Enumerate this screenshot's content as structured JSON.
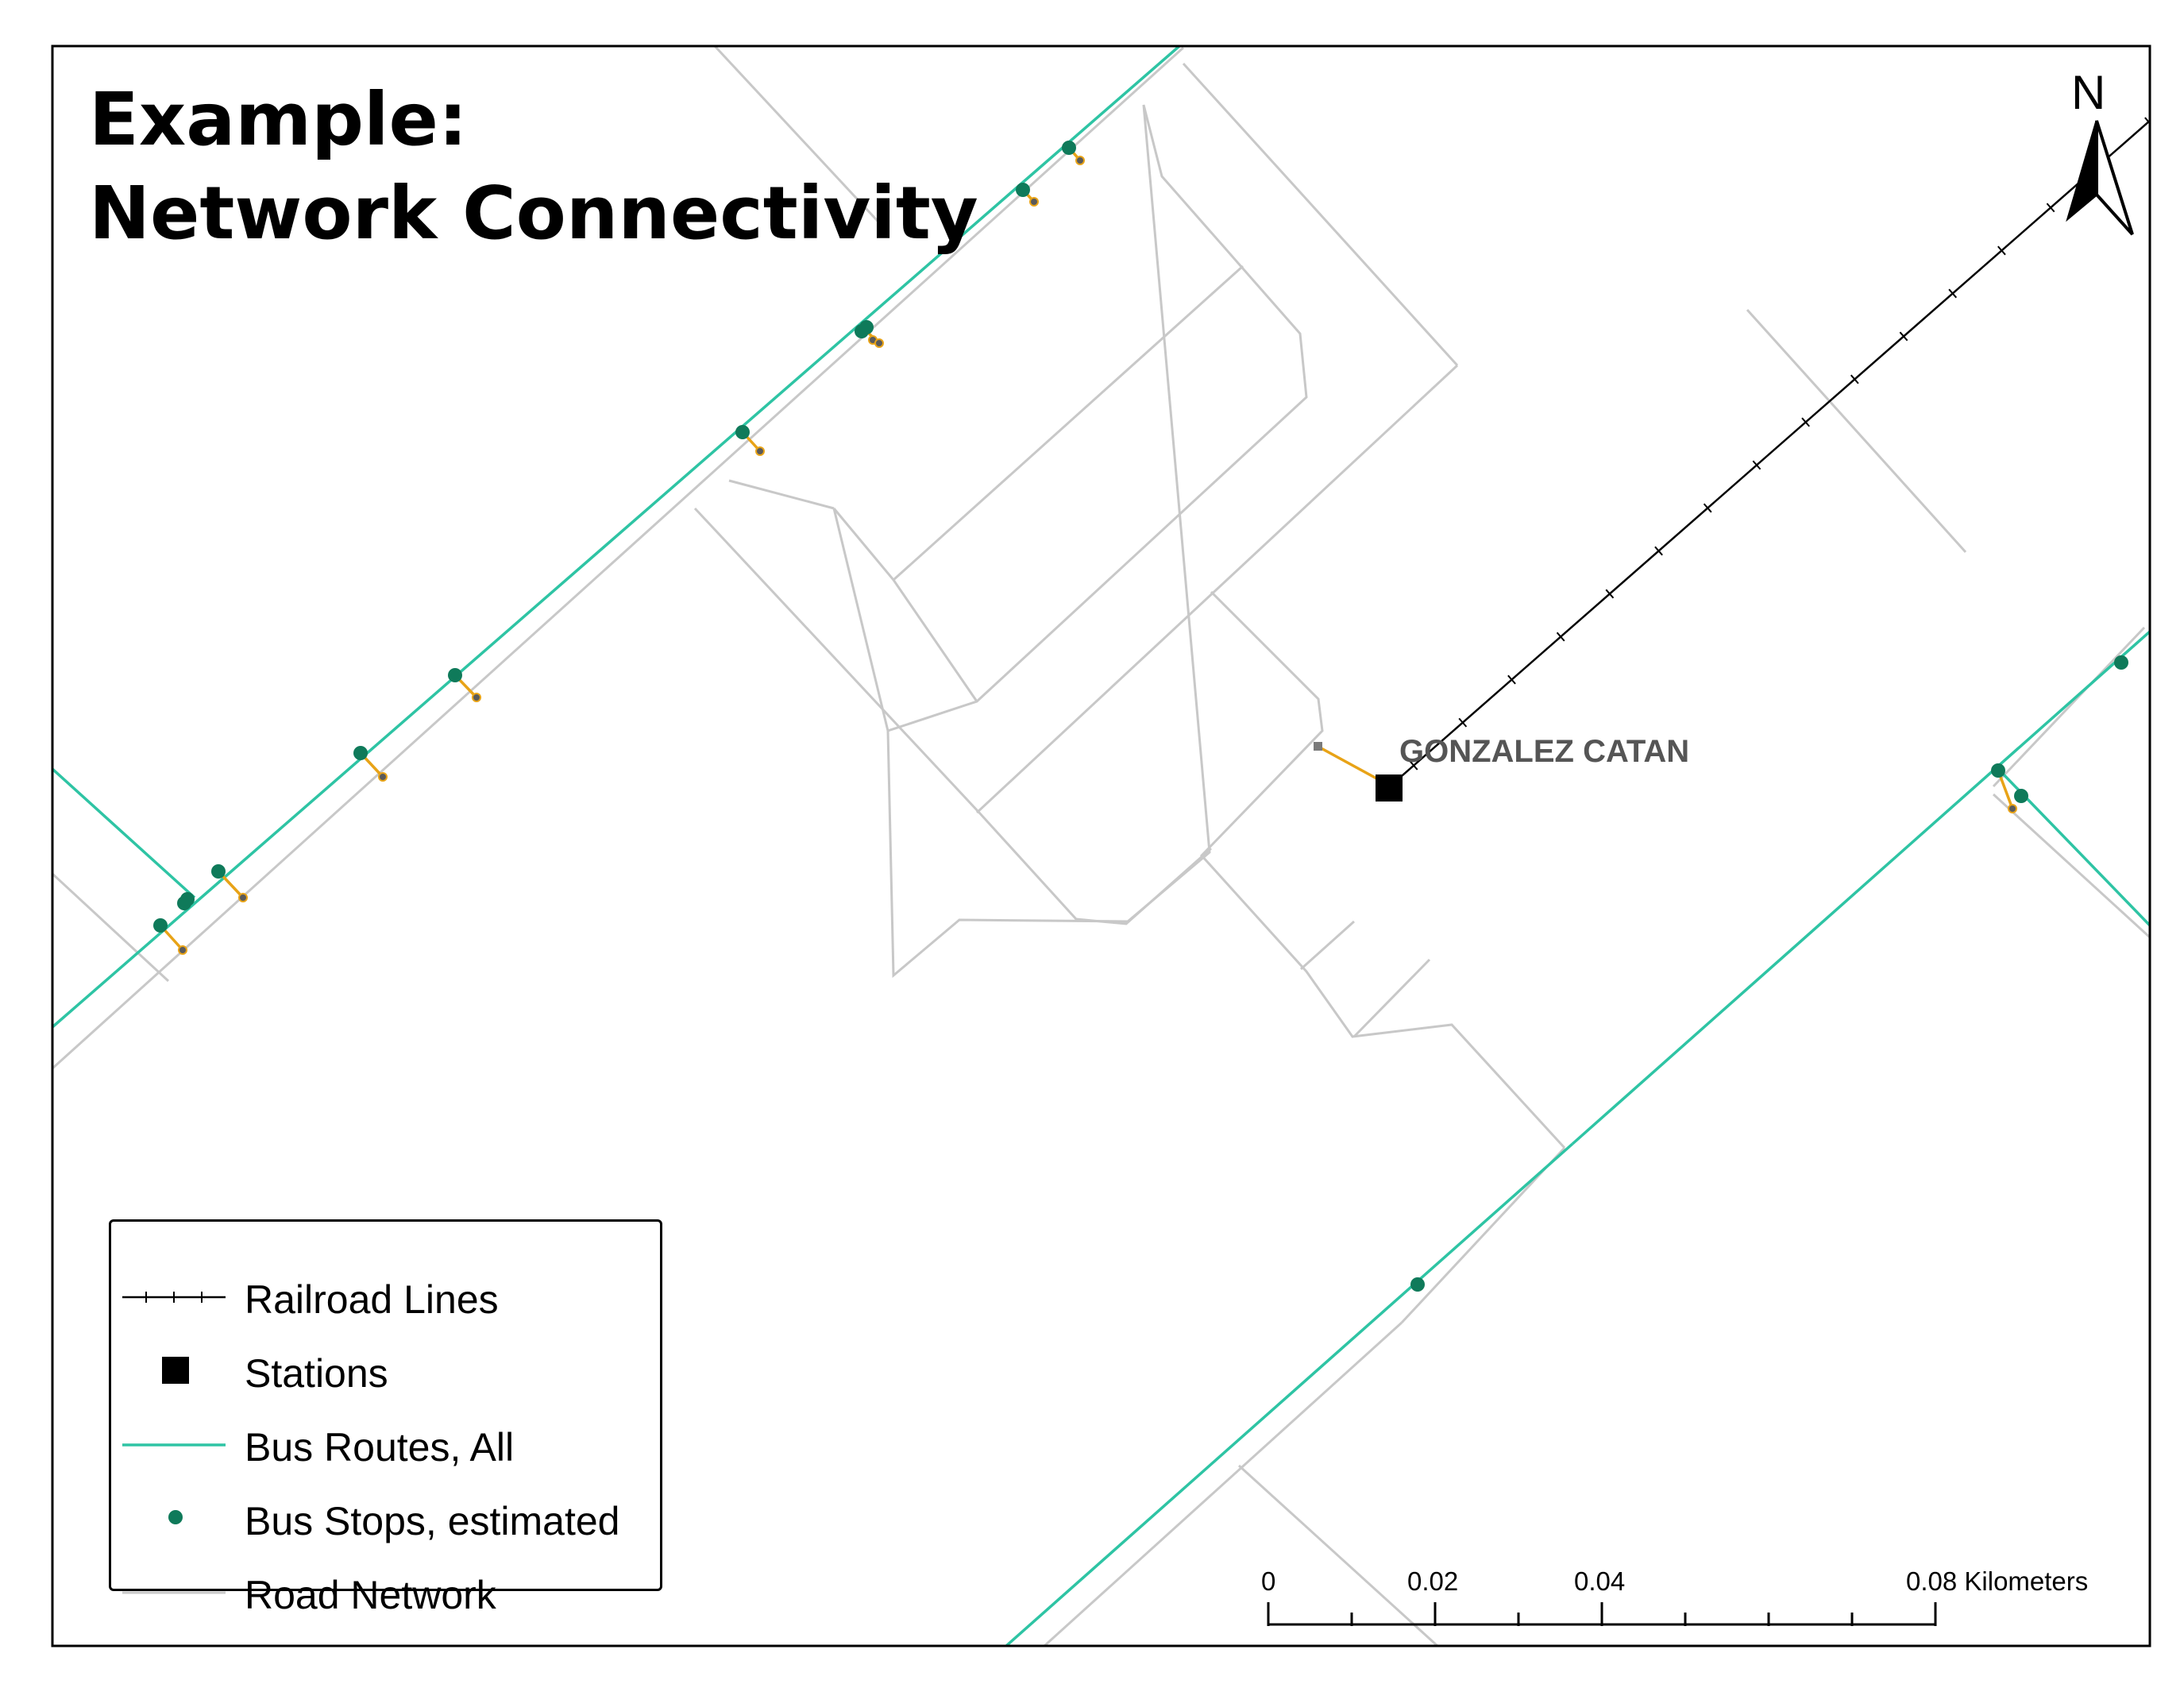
{
  "title": {
    "line1": "Example:",
    "line2": "Network Connectivity"
  },
  "north_arrow": {
    "letter": "N"
  },
  "station": {
    "name": "GONZALEZ CATAN"
  },
  "legend": {
    "items": [
      {
        "label": "Railroad Lines",
        "symbol": "railroad-line"
      },
      {
        "label": "Stations",
        "symbol": "station-square"
      },
      {
        "label": "Bus Routes, All",
        "symbol": "bus-route-line"
      },
      {
        "label": "Bus Stops, estimated",
        "symbol": "bus-stop-dot"
      },
      {
        "label": "Road Network",
        "symbol": "road-line"
      }
    ]
  },
  "scale_bar": {
    "ticks": [
      "0",
      "0.02",
      "0.04",
      "0.08 Kilometers"
    ]
  },
  "colors": {
    "road": "#c8c8c8",
    "bus_route": "#2ec4a4",
    "bus_stop": "#0f7a5a",
    "connector": "#e8a317",
    "railroad": "#000000",
    "station": "#000000"
  }
}
